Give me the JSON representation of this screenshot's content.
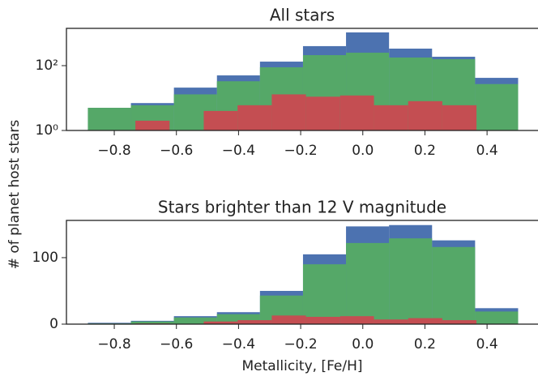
{
  "chart_data": [
    {
      "type": "histogram",
      "title": "All stars",
      "ylabel": "# of planet host stars",
      "log": true,
      "xlim": [
        -0.954,
        0.564
      ],
      "xticks": [
        {
          "value": -0.8,
          "label": "−0.8"
        },
        {
          "value": -0.6,
          "label": "−0.6"
        },
        {
          "value": -0.4,
          "label": "−0.4"
        },
        {
          "value": -0.2,
          "label": "−0.2"
        },
        {
          "value": 0.0,
          "label": "0.0"
        },
        0.2,
        0.4
      ],
      "ylim": [
        1,
        1413
      ],
      "yticks": [
        {
          "value": 1,
          "label": "10⁰"
        },
        {
          "value": 100,
          "label": "10²"
        }
      ],
      "series": [
        {
          "color": "#4c72b0",
          "bins": [
            -0.885,
            -0.7465,
            -0.608,
            -0.4695,
            -0.331,
            -0.1925,
            -0.054,
            0.0845,
            0.223,
            0.3615,
            0.5
          ],
          "values": [
            5,
            7,
            21,
            50,
            133,
            400,
            1059,
            335,
            188,
            42
          ]
        },
        {
          "color": "#55a868",
          "bins": [
            -0.885,
            -0.7465,
            -0.608,
            -0.4695,
            -0.331,
            -0.1925,
            -0.054,
            0.0845,
            0.223,
            0.3615,
            0.5
          ],
          "values": [
            5,
            6,
            13,
            33,
            89,
            211,
            251,
            178,
            158,
            27
          ]
        },
        {
          "color": "#c44e52",
          "bins": [
            -0.732,
            -0.622,
            -0.512,
            -0.403,
            -0.293,
            -0.183,
            -0.073,
            0.036,
            0.146,
            0.256,
            0.366
          ],
          "values": [
            2,
            0,
            4,
            6,
            13,
            11,
            12,
            6,
            8,
            6
          ]
        }
      ]
    },
    {
      "type": "histogram",
      "title": "Stars brighter than 12 V magnitude",
      "xlabel": "Metallicity, [Fe/H]",
      "log": false,
      "xlim": [
        -0.954,
        0.564
      ],
      "xticks": [
        {
          "value": -0.8,
          "label": "−0.8"
        },
        {
          "value": -0.6,
          "label": "−0.6"
        },
        {
          "value": -0.4,
          "label": "−0.4"
        },
        {
          "value": -0.2,
          "label": "−0.2"
        },
        {
          "value": 0.0,
          "label": "0.0"
        },
        0.2,
        0.4
      ],
      "ylim": [
        0,
        156
      ],
      "yticks": [
        0,
        100
      ],
      "series": [
        {
          "color": "#4c72b0",
          "bins": [
            -0.885,
            -0.7465,
            -0.608,
            -0.4695,
            -0.331,
            -0.1925,
            -0.054,
            0.0845,
            0.223,
            0.3615,
            0.5
          ],
          "values": [
            2,
            5,
            12,
            18,
            50,
            105,
            147,
            149,
            126,
            24
          ]
        },
        {
          "color": "#55a868",
          "bins": [
            -0.885,
            -0.7465,
            -0.608,
            -0.4695,
            -0.331,
            -0.1925,
            -0.054,
            0.0845,
            0.223,
            0.3615,
            0.5
          ],
          "values": [
            1,
            4,
            10,
            15,
            43,
            90,
            122,
            129,
            116,
            19
          ]
        },
        {
          "color": "#c44e52",
          "bins": [
            -0.732,
            -0.622,
            -0.512,
            -0.403,
            -0.293,
            -0.183,
            -0.073,
            0.036,
            0.146,
            0.256,
            0.366
          ],
          "values": [
            1,
            0,
            4,
            6,
            13,
            11,
            12,
            7,
            9,
            6
          ]
        }
      ]
    }
  ]
}
